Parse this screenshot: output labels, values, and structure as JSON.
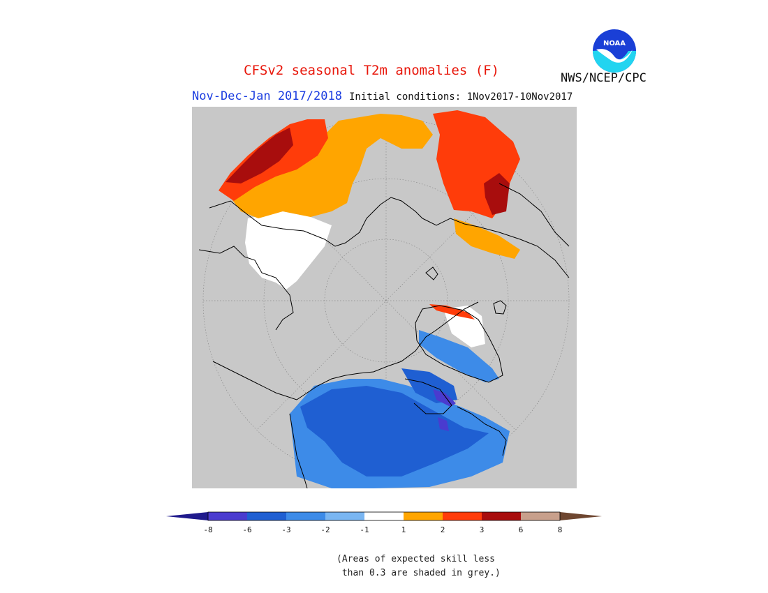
{
  "header": {
    "title": "CFSv2 seasonal T2m anomalies (F)",
    "period": "Nov-Dec-Jan 2017/2018",
    "initial_conditions": "Initial conditions: 1Nov2017-10Nov2017",
    "agency": "NWS/NCEP/CPC",
    "logo_text": "NOAA"
  },
  "colorbar": {
    "ticks": [
      "-8",
      "-6",
      "-3",
      "-2",
      "-1",
      "1",
      "2",
      "3",
      "6",
      "8"
    ],
    "colors": [
      "#1f1a8c",
      "#4a3bcf",
      "#1f5fd2",
      "#3d8be8",
      "#7ab6f2",
      "#ffffff",
      "#ffa500",
      "#ff3c0a",
      "#a80d0d",
      "#c8a08c",
      "#6e4630"
    ]
  },
  "colors": {
    "grey": "#c8c8c8",
    "coast": "#000000",
    "title": "#e8170b",
    "period": "#1a3ce0"
  },
  "note": {
    "line1": "(Areas of expected skill less",
    "line2": " than 0.3 are shaded in grey.)"
  }
}
